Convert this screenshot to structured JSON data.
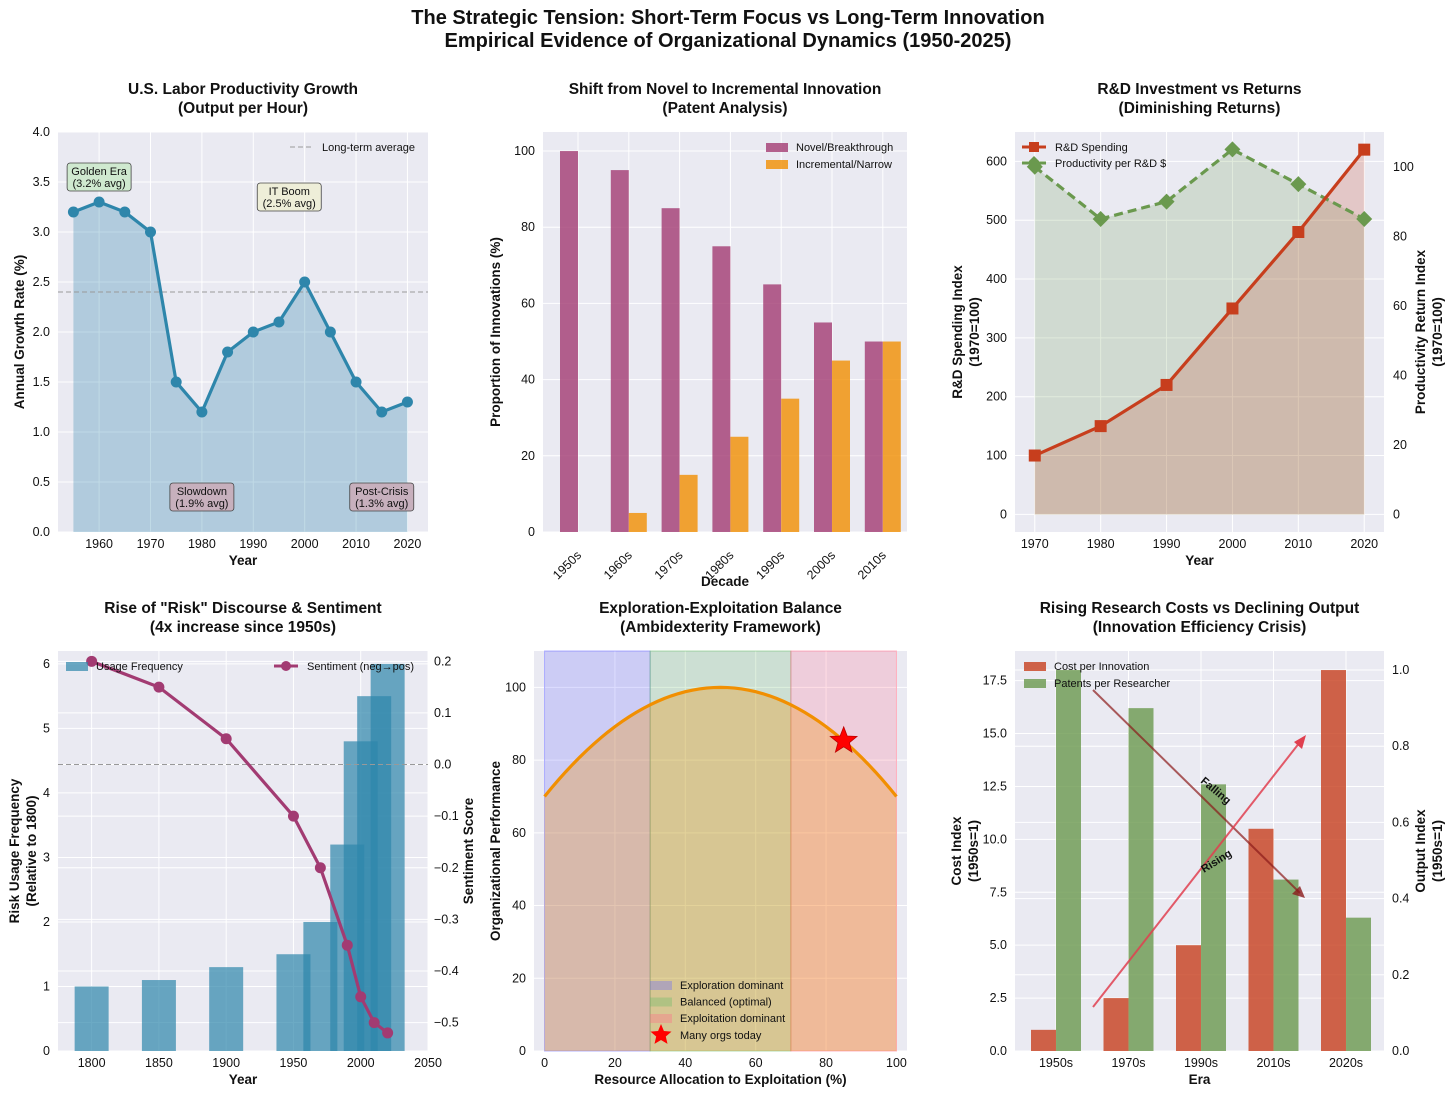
{
  "figure": {
    "title_line1": "The Strategic Tension: Short-Term Focus vs Long-Term Innovation",
    "title_line2": "Empirical Evidence of Organizational Dynamics (1950-2025)"
  },
  "chart_data": [
    {
      "id": "productivity",
      "type": "line",
      "title": "U.S. Labor Productivity Growth",
      "subtitle": "(Output per Hour)",
      "xlabel": "Year",
      "ylabel": "Annual Growth Rate (%)",
      "xlim": [
        1952,
        2024
      ],
      "ylim": [
        0,
        4.0
      ],
      "xticks": [
        1960,
        1970,
        1980,
        1990,
        2000,
        2010,
        2020
      ],
      "yticks": [
        "0.0",
        "0.5",
        "1.0",
        "1.5",
        "2.0",
        "2.5",
        "3.0",
        "3.5",
        "4.0"
      ],
      "x": [
        1955,
        1960,
        1965,
        1970,
        1975,
        1980,
        1985,
        1990,
        1995,
        2000,
        2005,
        2010,
        2015,
        2020
      ],
      "y": [
        3.2,
        3.3,
        3.2,
        3.0,
        1.5,
        1.2,
        1.8,
        2.0,
        2.1,
        2.5,
        2.0,
        1.5,
        1.2,
        1.3
      ],
      "reference_line": {
        "y": 2.4,
        "label": "Long-term average"
      },
      "annotations": [
        {
          "line1": "Golden Era",
          "line2": "(3.2% avg)",
          "x": 1960,
          "y": 3.55,
          "color": "#cfe9cf"
        },
        {
          "line1": "IT Boom",
          "line2": "(2.5% avg)",
          "x": 1997,
          "y": 3.35,
          "color": "#eeeed8"
        },
        {
          "line1": "Slowdown",
          "line2": "(1.9% avg)",
          "x": 1980,
          "y": 0.35,
          "color": "#c7b0bd"
        },
        {
          "line1": "Post-Crisis",
          "line2": "(1.3% avg)",
          "x": 2015,
          "y": 0.35,
          "color": "#c7b0bd"
        }
      ],
      "color": "#2e86ab"
    },
    {
      "id": "patents",
      "type": "bar",
      "title": "Shift from Novel to Incremental Innovation",
      "subtitle": "(Patent Analysis)",
      "xlabel": "Decade",
      "ylabel": "Proportion of Innovations (%)",
      "ylim": [
        0,
        105
      ],
      "yticks": [
        0,
        20,
        40,
        60,
        80,
        100
      ],
      "categories": [
        "1950s",
        "1960s",
        "1970s",
        "1980s",
        "1990s",
        "2000s",
        "2010s"
      ],
      "series": [
        {
          "name": "Novel/Breakthrough",
          "values": [
            100,
            95,
            85,
            75,
            65,
            55,
            50
          ],
          "color": "#a23b72"
        },
        {
          "name": "Incremental/Narrow",
          "values": [
            0,
            5,
            15,
            25,
            35,
            45,
            50
          ],
          "color": "#f18f01"
        }
      ]
    },
    {
      "id": "rd",
      "type": "line",
      "title": "R&D Investment vs Returns",
      "subtitle": "(Diminishing Returns)",
      "xlabel": "Year",
      "ylabel_left": "R&D Spending Index",
      "ylabel_left2": "(1970=100)",
      "ylabel_right": "Productivity Return Index",
      "ylabel_right2": "(1970=100)",
      "xlim": [
        1967,
        2023
      ],
      "ylim_left": [
        -30,
        650
      ],
      "ylim_right": [
        -5,
        110
      ],
      "xticks": [
        1970,
        1980,
        1990,
        2000,
        2010,
        2020
      ],
      "yticks_left": [
        0,
        100,
        200,
        300,
        400,
        500,
        600
      ],
      "yticks_right": [
        0,
        20,
        40,
        60,
        80,
        100
      ],
      "x": [
        1970,
        1980,
        1990,
        2000,
        2010,
        2020
      ],
      "series": [
        {
          "name": "R&D Spending",
          "values": [
            100,
            150,
            220,
            350,
            480,
            620
          ],
          "color": "#c73e1d",
          "axis": "left"
        },
        {
          "name": "Productivity per R&D $",
          "values": [
            100,
            85,
            90,
            105,
            95,
            85
          ],
          "color": "#6a994e",
          "axis": "right"
        }
      ]
    },
    {
      "id": "risk",
      "type": "bar",
      "title": "Rise of \"Risk\" Discourse & Sentiment",
      "subtitle": "(4x increase since 1950s)",
      "xlabel": "Year",
      "ylabel_left": "Risk Usage Frequency",
      "ylabel_left2": "(Relative to 1800)",
      "ylabel_right": "Sentiment Score",
      "xlim": [
        1775,
        2050
      ],
      "ylim_left": [
        0,
        6.2
      ],
      "ylim_right": [
        -0.555,
        0.22
      ],
      "xticks": [
        1800,
        1850,
        1900,
        1950,
        2000,
        2050
      ],
      "yticks_left": [
        0,
        1,
        2,
        3,
        4,
        5,
        6
      ],
      "yticks_right": [
        "−0.5",
        "−0.4",
        "−0.3",
        "−0.2",
        "−0.1",
        "0.0",
        "0.1",
        "0.2"
      ],
      "yticks_right_values": [
        -0.5,
        -0.4,
        -0.3,
        -0.2,
        -0.1,
        0.0,
        0.1,
        0.2
      ],
      "bars": {
        "name": "Usage Frequency",
        "x": [
          1800,
          1850,
          1900,
          1950,
          1970,
          1990,
          2000,
          2010,
          2020
        ],
        "values": [
          1.0,
          1.1,
          1.3,
          1.5,
          2.0,
          3.2,
          4.8,
          5.5,
          6.0
        ],
        "color": "#2e86ab"
      },
      "line": {
        "name": "Sentiment (neg→pos)",
        "x": [
          1800,
          1850,
          1900,
          1950,
          1970,
          1990,
          2000,
          2010,
          2020
        ],
        "values": [
          0.2,
          0.15,
          0.05,
          -0.1,
          -0.2,
          -0.35,
          -0.45,
          -0.5,
          -0.52
        ],
        "color": "#a23b72"
      }
    },
    {
      "id": "ambidexterity",
      "type": "line",
      "title": "Exploration-Exploitation Balance",
      "subtitle": "(Ambidexterity Framework)",
      "xlabel": "Resource Allocation to Exploitation (%)",
      "ylabel": "Organizational Performance",
      "xlim": [
        -3,
        103
      ],
      "ylim": [
        0,
        110
      ],
      "xticks": [
        0,
        20,
        40,
        60,
        80,
        100
      ],
      "yticks": [
        0,
        20,
        40,
        60,
        80,
        100
      ],
      "curve": {
        "formula": "100 - 0.012*(x-50)^2",
        "color": "#f18f01"
      },
      "regions": [
        {
          "name": "Exploration dominant",
          "from": 0,
          "to": 30,
          "color": "#6666ff"
        },
        {
          "name": "Balanced (optimal)",
          "from": 30,
          "to": 70,
          "color": "#66bb66"
        },
        {
          "name": "Exploitation dominant",
          "from": 70,
          "to": 100,
          "color": "#ff6b8a"
        }
      ],
      "marker": {
        "name": "Many orgs today",
        "x": 85,
        "y": 85.3,
        "color": "#ff0000"
      }
    },
    {
      "id": "costs",
      "type": "bar",
      "title": "Rising Research Costs vs Declining Output",
      "subtitle": "(Innovation Efficiency Crisis)",
      "xlabel": "Era",
      "ylabel_left": "Cost Index",
      "ylabel_left2": "(1950s=1)",
      "ylabel_right": "Output Index",
      "ylabel_right2": "(1950s=1)",
      "ylim_left": [
        0,
        18.9
      ],
      "ylim_right": [
        0,
        1.05
      ],
      "yticks_left": [
        "0.0",
        "2.5",
        "5.0",
        "7.5",
        "10.0",
        "12.5",
        "15.0",
        "17.5"
      ],
      "yticks_right": [
        "0.0",
        "0.2",
        "0.4",
        "0.6",
        "0.8",
        "1.0"
      ],
      "categories": [
        "1950s",
        "1970s",
        "1990s",
        "2010s",
        "2020s"
      ],
      "series": [
        {
          "name": "Cost per Innovation",
          "values": [
            1.0,
            2.5,
            5.0,
            10.5,
            18.0
          ],
          "color": "#c73e1d",
          "axis": "left"
        },
        {
          "name": "Patents per Researcher",
          "values": [
            1.0,
            0.9,
            0.7,
            0.45,
            0.35
          ],
          "color": "#6a994e",
          "axis": "right"
        }
      ],
      "arrows": [
        {
          "label": "Falling",
          "color": "#8b1a1a"
        },
        {
          "label": "Rising",
          "color": "#e04050"
        }
      ]
    }
  ]
}
